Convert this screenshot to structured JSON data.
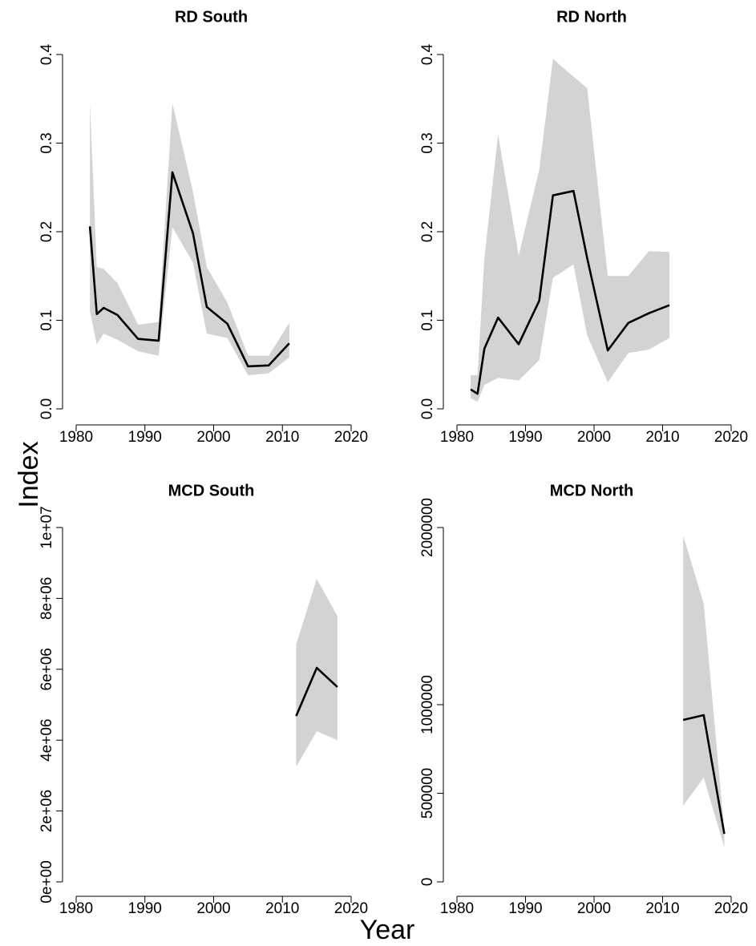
{
  "xlabel": "Year",
  "ylabel": "Index",
  "chart_data": [
    {
      "type": "line",
      "title": "RD South",
      "x": [
        1982,
        1983,
        1984,
        1986,
        1989,
        1992,
        1994,
        1997,
        1999,
        2002,
        2005,
        2008,
        2011
      ],
      "series": [
        {
          "color": "#000000",
          "band_color": "#d3d3d3",
          "values": [
            0.206,
            0.107,
            0.114,
            0.106,
            0.079,
            0.077,
            0.267,
            0.198,
            0.115,
            0.096,
            0.048,
            0.049,
            0.074
          ],
          "upper": [
            0.345,
            0.16,
            0.158,
            0.142,
            0.095,
            0.098,
            0.345,
            0.245,
            0.16,
            0.12,
            0.06,
            0.06,
            0.097
          ],
          "lower": [
            0.11,
            0.073,
            0.085,
            0.078,
            0.065,
            0.06,
            0.205,
            0.165,
            0.085,
            0.08,
            0.038,
            0.04,
            0.058
          ]
        }
      ],
      "xlim": [
        1980,
        2020
      ],
      "xticks": [
        1980,
        1990,
        2000,
        2010,
        2020
      ],
      "ylim": [
        0,
        0.4
      ],
      "yticks": [
        {
          "value": 0,
          "label": "0.0"
        },
        0.1,
        0.2,
        0.3,
        0.4
      ]
    },
    {
      "type": "line",
      "title": "RD North",
      "x": [
        1982,
        1983,
        1984,
        1986,
        1989,
        1992,
        1994,
        1997,
        1999,
        2002,
        2005,
        2008,
        2011
      ],
      "series": [
        {
          "color": "#000000",
          "band_color": "#d3d3d3",
          "values": [
            0.022,
            0.017,
            0.068,
            0.103,
            0.073,
            0.122,
            0.241,
            0.246,
            0.17,
            0.066,
            0.097,
            0.108,
            0.117
          ],
          "upper": [
            0.038,
            0.038,
            0.17,
            0.31,
            0.173,
            0.27,
            0.395,
            0.375,
            0.362,
            0.15,
            0.15,
            0.178,
            0.177
          ],
          "lower": [
            0.012,
            0.008,
            0.027,
            0.035,
            0.032,
            0.055,
            0.148,
            0.163,
            0.083,
            0.03,
            0.063,
            0.067,
            0.08
          ]
        }
      ],
      "xlim": [
        1980,
        2020
      ],
      "xticks": [
        1980,
        1990,
        2000,
        2010,
        2020
      ],
      "ylim": [
        0,
        0.4
      ],
      "yticks": [
        {
          "value": 0,
          "label": "0.0"
        },
        0.1,
        0.2,
        0.3,
        0.4
      ]
    },
    {
      "type": "line",
      "title": "MCD South",
      "x": [
        2012,
        2015,
        2018
      ],
      "series": [
        {
          "color": "#000000",
          "band_color": "#d3d3d3",
          "values": [
            4680000,
            6040000,
            5500000
          ],
          "upper": [
            6700000,
            8550000,
            7500000
          ],
          "lower": [
            3250000,
            4250000,
            4000000
          ]
        }
      ],
      "xlim": [
        1980,
        2020
      ],
      "xticks": [
        1980,
        1990,
        2000,
        2010,
        2020
      ],
      "ylim": [
        0,
        10000000
      ],
      "yticks": [
        {
          "value": 0,
          "label": "0e+00"
        },
        {
          "value": 2000000,
          "label": "2e+06"
        },
        {
          "value": 4000000,
          "label": "4e+06"
        },
        {
          "value": 6000000,
          "label": "6e+06"
        },
        {
          "value": 8000000,
          "label": "8e+06"
        },
        {
          "value": 10000000,
          "label": "1e+07"
        }
      ]
    },
    {
      "type": "line",
      "title": "MCD North",
      "x": [
        2013,
        2016,
        2019
      ],
      "series": [
        {
          "color": "#000000",
          "band_color": "#d3d3d3",
          "values": [
            914000,
            941000,
            271000
          ],
          "upper": [
            1955000,
            1570000,
            285000
          ],
          "lower": [
            430000,
            588000,
            195000
          ]
        }
      ],
      "xlim": [
        1980,
        2020
      ],
      "xticks": [
        1980,
        1990,
        2000,
        2010,
        2020
      ],
      "ylim": [
        0,
        2000000
      ],
      "yticks": [
        0,
        500000,
        1000000,
        2000000
      ]
    }
  ]
}
